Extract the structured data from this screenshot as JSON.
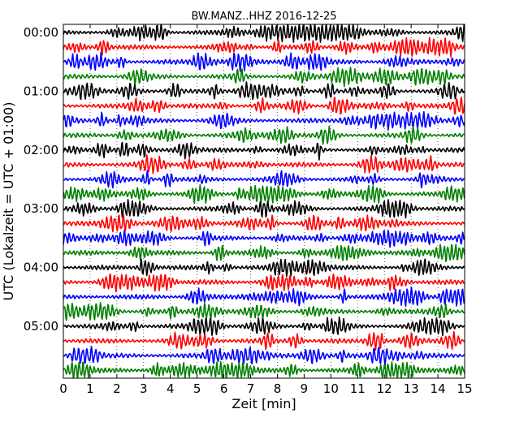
{
  "chart_data": {
    "type": "line",
    "title": "BW.MANZ..HHZ 2016-12-25",
    "xlabel": "Zeit  [min]",
    "ylabel": "UTC (Lokalzeit = UTC + 01:00)",
    "xlim": [
      0,
      15
    ],
    "x_ticks": [
      "0",
      "1",
      "2",
      "3",
      "4",
      "5",
      "6",
      "7",
      "8",
      "9",
      "10",
      "11",
      "12",
      "13",
      "14",
      "15"
    ],
    "y_ticks": [
      "00:00",
      "01:00",
      "02:00",
      "03:00",
      "04:00",
      "05:00"
    ],
    "rows_per_hour": 4,
    "trace_colors": [
      "#000000",
      "#ff0000",
      "#0000ff",
      "#008000"
    ],
    "grid": "x dotted",
    "legend": "none"
  }
}
